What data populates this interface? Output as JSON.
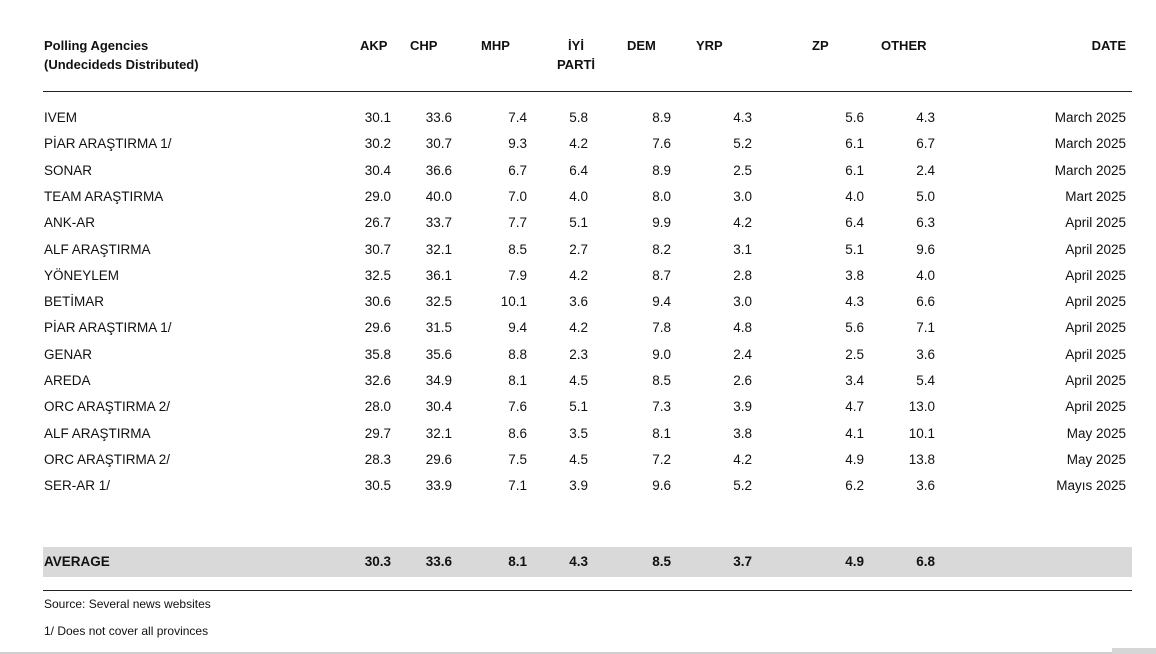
{
  "table": {
    "headers": {
      "agency_line1": "Polling Agencies",
      "agency_line2": "(Undecideds Distributed)",
      "akp": "AKP",
      "chp": "CHP",
      "mhp": "MHP",
      "iyi_line1": "İYİ",
      "iyi_line2": "PARTİ",
      "dem": "DEM",
      "yrp": "YRP",
      "zp": "ZP",
      "other": "OTHER",
      "date": "DATE"
    },
    "rows": [
      {
        "agency": "IVEM",
        "akp": "30.1",
        "chp": "33.6",
        "mhp": "7.4",
        "iyi": "5.8",
        "dem": "8.9",
        "yrp": "4.3",
        "zp": "5.6",
        "other": "4.3",
        "date": "March 2025"
      },
      {
        "agency": "PİAR ARAŞTIRMA 1/",
        "akp": "30.2",
        "chp": "30.7",
        "mhp": "9.3",
        "iyi": "4.2",
        "dem": "7.6",
        "yrp": "5.2",
        "zp": "6.1",
        "other": "6.7",
        "date": "March 2025"
      },
      {
        "agency": "SONAR",
        "akp": "30.4",
        "chp": "36.6",
        "mhp": "6.7",
        "iyi": "6.4",
        "dem": "8.9",
        "yrp": "2.5",
        "zp": "6.1",
        "other": "2.4",
        "date": "March 2025"
      },
      {
        "agency": "TEAM ARAŞTIRMA",
        "akp": "29.0",
        "chp": "40.0",
        "mhp": "7.0",
        "iyi": "4.0",
        "dem": "8.0",
        "yrp": "3.0",
        "zp": "4.0",
        "other": "5.0",
        "date": "Mart 2025"
      },
      {
        "agency": "ANK-AR",
        "akp": "26.7",
        "chp": "33.7",
        "mhp": "7.7",
        "iyi": "5.1",
        "dem": "9.9",
        "yrp": "4.2",
        "zp": "6.4",
        "other": "6.3",
        "date": "April 2025"
      },
      {
        "agency": "ALF ARAŞTIRMA",
        "akp": "30.7",
        "chp": "32.1",
        "mhp": "8.5",
        "iyi": "2.7",
        "dem": "8.2",
        "yrp": "3.1",
        "zp": "5.1",
        "other": "9.6",
        "date": "April 2025"
      },
      {
        "agency": "YÖNEYLEM",
        "akp": "32.5",
        "chp": "36.1",
        "mhp": "7.9",
        "iyi": "4.2",
        "dem": "8.7",
        "yrp": "2.8",
        "zp": "3.8",
        "other": "4.0",
        "date": "April 2025"
      },
      {
        "agency": "BETİMAR",
        "akp": "30.6",
        "chp": "32.5",
        "mhp": "10.1",
        "iyi": "3.6",
        "dem": "9.4",
        "yrp": "3.0",
        "zp": "4.3",
        "other": "6.6",
        "date": "April 2025"
      },
      {
        "agency": "PİAR ARAŞTIRMA 1/",
        "akp": "29.6",
        "chp": "31.5",
        "mhp": "9.4",
        "iyi": "4.2",
        "dem": "7.8",
        "yrp": "4.8",
        "zp": "5.6",
        "other": "7.1",
        "date": "April 2025"
      },
      {
        "agency": "GENAR",
        "akp": "35.8",
        "chp": "35.6",
        "mhp": "8.8",
        "iyi": "2.3",
        "dem": "9.0",
        "yrp": "2.4",
        "zp": "2.5",
        "other": "3.6",
        "date": "April 2025"
      },
      {
        "agency": "AREDA",
        "akp": "32.6",
        "chp": "34.9",
        "mhp": "8.1",
        "iyi": "4.5",
        "dem": "8.5",
        "yrp": "2.6",
        "zp": "3.4",
        "other": "5.4",
        "date": "April 2025"
      },
      {
        "agency": "ORC ARAŞTIRMA 2/",
        "akp": "28.0",
        "chp": "30.4",
        "mhp": "7.6",
        "iyi": "5.1",
        "dem": "7.3",
        "yrp": "3.9",
        "zp": "4.7",
        "other": "13.0",
        "date": "April 2025"
      },
      {
        "agency": "ALF ARAŞTIRMA",
        "akp": "29.7",
        "chp": "32.1",
        "mhp": "8.6",
        "iyi": "3.5",
        "dem": "8.1",
        "yrp": "3.8",
        "zp": "4.1",
        "other": "10.1",
        "date": "May 2025"
      },
      {
        "agency": "ORC ARAŞTIRMA 2/",
        "akp": "28.3",
        "chp": "29.6",
        "mhp": "7.5",
        "iyi": "4.5",
        "dem": "7.2",
        "yrp": "4.2",
        "zp": "4.9",
        "other": "13.8",
        "date": "May 2025"
      },
      {
        "agency": "SER-AR 1/",
        "akp": "30.5",
        "chp": "33.9",
        "mhp": "7.1",
        "iyi": "3.9",
        "dem": "9.6",
        "yrp": "5.2",
        "zp": "6.2",
        "other": "3.6",
        "date": "Mayıs 2025"
      }
    ],
    "average": {
      "agency": "AVERAGE",
      "akp": "30.3",
      "chp": "33.6",
      "mhp": "8.1",
      "iyi": "4.3",
      "dem": "8.5",
      "yrp": "3.7",
      "zp": "4.9",
      "other": "6.8",
      "date": ""
    }
  },
  "notes": {
    "source": "Source: Several news websites",
    "footnote": "1/ Does not cover all provinces"
  }
}
